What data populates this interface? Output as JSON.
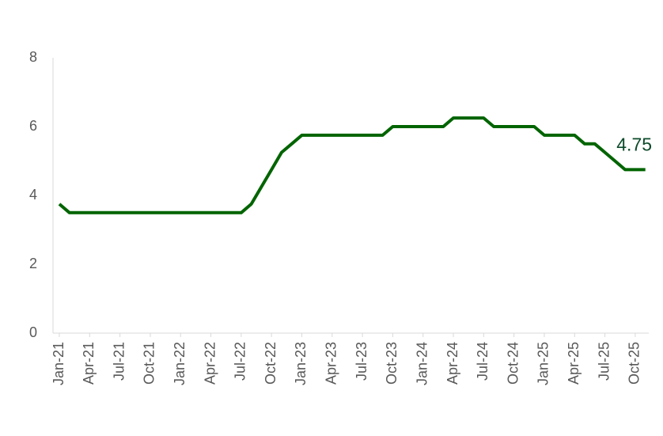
{
  "chart_data": {
    "type": "line",
    "categories": [
      "Jan-21",
      null,
      null,
      "Apr-21",
      null,
      null,
      "Jul-21",
      null,
      null,
      "Oct-21",
      null,
      null,
      "Jan-22",
      null,
      null,
      "Apr-22",
      null,
      null,
      "Jul-22",
      null,
      null,
      "Oct-22",
      null,
      null,
      "Jan-23",
      null,
      null,
      "Apr-23",
      null,
      null,
      "Jul-23",
      null,
      null,
      "Oct-23",
      null,
      null,
      "Jan-24",
      null,
      null,
      "Apr-24",
      null,
      null,
      "Jul-24",
      null,
      null,
      "Oct-24",
      null,
      null,
      "Jan-25",
      null,
      null,
      "Apr-25",
      null,
      null,
      "Jul-25",
      null,
      null,
      "Oct-25",
      null
    ],
    "values": [
      3.75,
      3.5,
      3.5,
      3.5,
      3.5,
      3.5,
      3.5,
      3.5,
      3.5,
      3.5,
      3.5,
      3.5,
      3.5,
      3.5,
      3.5,
      3.5,
      3.5,
      3.5,
      3.5,
      3.75,
      4.25,
      4.75,
      5.25,
      5.5,
      5.75,
      5.75,
      5.75,
      5.75,
      5.75,
      5.75,
      5.75,
      5.75,
      5.75,
      6.0,
      6.0,
      6.0,
      6.0,
      6.0,
      6.0,
      6.25,
      6.25,
      6.25,
      6.25,
      6.0,
      6.0,
      6.0,
      6.0,
      6.0,
      5.75,
      5.75,
      5.75,
      5.75,
      5.5,
      5.5,
      5.25,
      5.0,
      4.75,
      4.75,
      4.75
    ],
    "color": "#006400",
    "ylim": [
      0,
      8
    ],
    "yticks": [
      0,
      2,
      4,
      6,
      8
    ]
  }
}
